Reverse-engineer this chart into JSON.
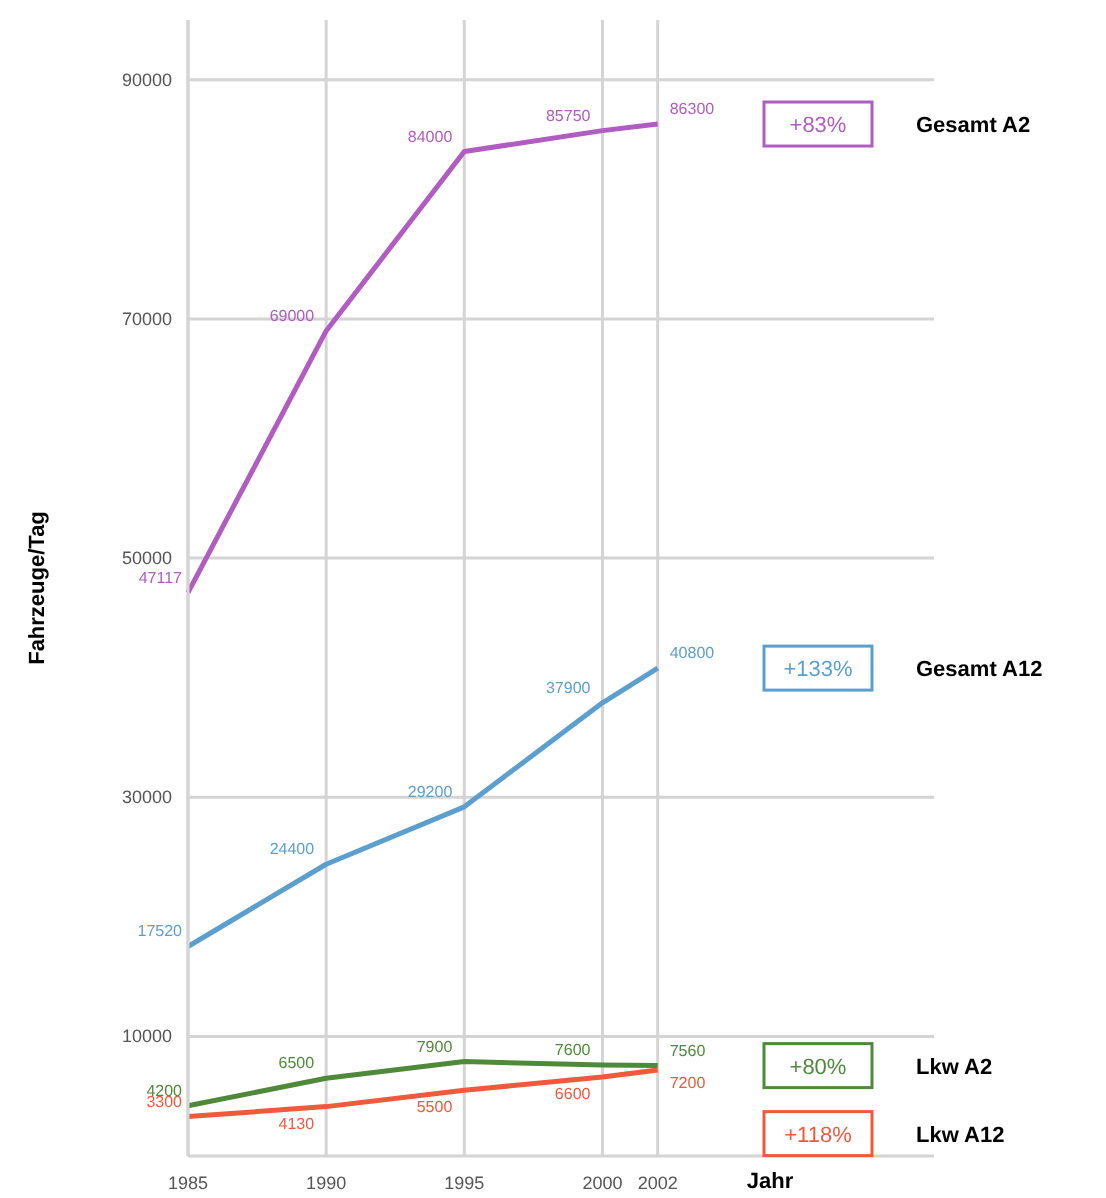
{
  "chart_data": {
    "type": "line",
    "xlabel": "Jahr",
    "ylabel": "Fahrzeuge/Tag",
    "x": [
      1985,
      1990,
      1995,
      2000,
      2002
    ],
    "xlim": [
      1985,
      2012
    ],
    "xticks": [
      1985,
      1990,
      1995,
      2000,
      2002
    ],
    "ylim": [
      0,
      95000
    ],
    "yticks": [
      10000,
      30000,
      50000,
      70000,
      90000
    ],
    "grid": true,
    "data_labels": true,
    "legend": "right",
    "series": [
      {
        "name": "Gesamt A2",
        "color": "#b05cc0",
        "values": [
          47117,
          69000,
          84000,
          85750,
          86300
        ]
      },
      {
        "name": "Gesamt A12",
        "color": "#5b9fcf",
        "values": [
          17520,
          24400,
          29200,
          37900,
          40800
        ]
      },
      {
        "name": "Lkw A2",
        "color": "#4f8a3a",
        "values": [
          4200,
          6500,
          7900,
          7600,
          7560
        ]
      },
      {
        "name": "Lkw A12",
        "color": "#f05a3c",
        "values": [
          3300,
          4130,
          5500,
          6600,
          7200
        ]
      }
    ],
    "annotations": [
      "+83%",
      "+133%",
      "+80%",
      "+118%"
    ]
  }
}
